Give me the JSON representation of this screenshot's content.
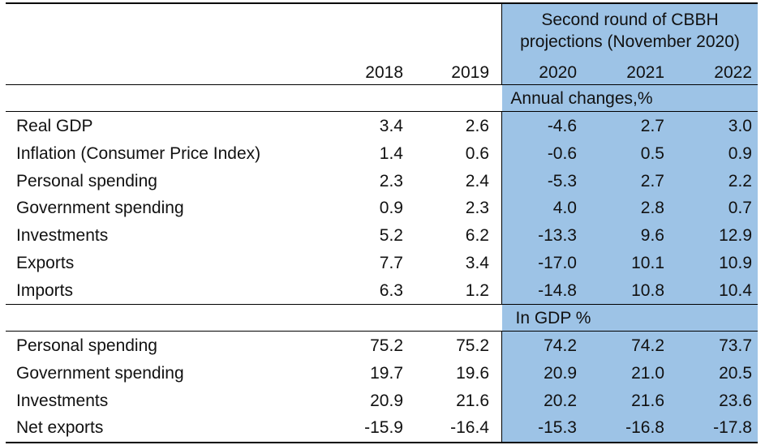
{
  "header": {
    "projection_title_line1": "Second round of CBBH",
    "projection_title_line2": "projections (November 2020)",
    "years": [
      "2018",
      "2019",
      "2020",
      "2021",
      "2022"
    ]
  },
  "sections": [
    {
      "title": "Annual changes,%",
      "rows": [
        {
          "label": "Real GDP",
          "values": [
            "3.4",
            "2.6",
            "-4.6",
            "2.7",
            "3.0"
          ]
        },
        {
          "label": "Inflation (Consumer Price Index)",
          "values": [
            "1.4",
            "0.6",
            "-0.6",
            "0.5",
            "0.9"
          ]
        },
        {
          "label": "Personal spending",
          "values": [
            "2.3",
            "2.4",
            "-5.3",
            "2.7",
            "2.2"
          ]
        },
        {
          "label": "Government spending",
          "values": [
            "0.9",
            "2.3",
            "4.0",
            "2.8",
            "0.7"
          ]
        },
        {
          "label": "Investments",
          "values": [
            "5.2",
            "6.2",
            "-13.3",
            "9.6",
            "12.9"
          ]
        },
        {
          "label": "Exports",
          "values": [
            "7.7",
            "3.4",
            "-17.0",
            "10.1",
            "10.9"
          ]
        },
        {
          "label": "Imports",
          "values": [
            "6.3",
            "1.2",
            "-14.8",
            "10.8",
            "10.4"
          ]
        }
      ]
    },
    {
      "title": "In GDP %",
      "rows": [
        {
          "label": "Personal spending",
          "values": [
            "75.2",
            "75.2",
            "74.2",
            "74.2",
            "73.7"
          ]
        },
        {
          "label": "Government spending",
          "values": [
            "19.7",
            "19.6",
            "20.9",
            "21.0",
            "20.5"
          ]
        },
        {
          "label": "Investments",
          "values": [
            "20.9",
            "21.6",
            "20.2",
            "21.6",
            "23.6"
          ]
        },
        {
          "label": "Net exports",
          "values": [
            "-15.9",
            "-16.4",
            "-15.3",
            "-16.8",
            "-17.8"
          ]
        }
      ]
    }
  ],
  "colors": {
    "projection_shade": "#9dc3e6",
    "rule": "#000000"
  }
}
